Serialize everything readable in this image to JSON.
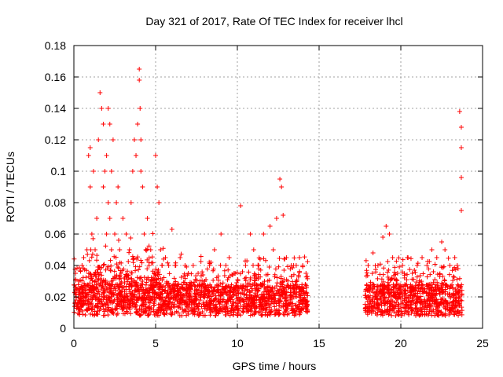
{
  "chart_data": {
    "type": "scatter",
    "title": "Day 321 of 2017, Rate Of TEC Index for receiver lhcl",
    "xlabel": "GPS time / hours",
    "ylabel": "ROTI / TECUs",
    "xlim": [
      0,
      25
    ],
    "ylim": [
      0,
      0.18
    ],
    "xticks": [
      0,
      5,
      10,
      15,
      20,
      25
    ],
    "yticks": [
      0,
      0.02,
      0.04,
      0.06,
      0.08,
      0.1,
      0.12,
      0.14,
      0.16,
      0.18
    ],
    "xtick_labels": [
      "0",
      "5",
      "10",
      "15",
      "20",
      "25"
    ],
    "ytick_labels": [
      "0",
      "0.02",
      "0.04",
      "0.06",
      "0.08",
      "0.1",
      "0.12",
      "0.14",
      "0.16",
      "0.18"
    ],
    "grid": true,
    "marker": "+",
    "color": "#ff0000",
    "data_gap_hours": [
      14.3,
      17.8
    ],
    "series": [
      {
        "name": "ROTI",
        "x": [
          0.1,
          0.3,
          0.5,
          0.6,
          0.8,
          0.9,
          1.0,
          1.0,
          1.1,
          1.2,
          1.3,
          1.4,
          1.5,
          1.6,
          1.7,
          1.8,
          1.8,
          1.9,
          2.0,
          2.0,
          2.1,
          2.1,
          2.2,
          2.2,
          2.3,
          2.3,
          2.4,
          2.5,
          2.6,
          2.7,
          2.8,
          3.0,
          3.2,
          3.4,
          3.5,
          3.6,
          3.7,
          3.8,
          3.9,
          4.0,
          4.0,
          4.05,
          4.1,
          4.1,
          4.2,
          4.3,
          4.4,
          4.5,
          4.6,
          4.7,
          4.8,
          5.0,
          5.1,
          5.2,
          5.3,
          5.4,
          5.6,
          5.8,
          6.0,
          6.2,
          6.5,
          6.8,
          7.0,
          7.3,
          7.6,
          8.0,
          8.3,
          8.6,
          9.0,
          9.3,
          9.5,
          9.8,
          10.2,
          10.5,
          10.8,
          11.0,
          11.3,
          11.6,
          12.0,
          12.2,
          12.4,
          12.6,
          12.7,
          12.8,
          13.0,
          13.3,
          13.6,
          13.8,
          14.0,
          14.2,
          18.0,
          18.3,
          18.6,
          18.9,
          19.1,
          19.3,
          19.5,
          19.8,
          20.1,
          20.4,
          20.7,
          21.0,
          21.3,
          21.6,
          21.9,
          22.2,
          22.5,
          22.7,
          23.0,
          23.3,
          23.5,
          23.6,
          23.7,
          23.7,
          23.7,
          23.7,
          0.2,
          0.7,
          1.1,
          1.6,
          2.4,
          2.9,
          3.3,
          3.8,
          4.4,
          4.9,
          5.5,
          6.1,
          6.7,
          7.4,
          8.1,
          8.8,
          9.4,
          10.0,
          10.7,
          11.5,
          12.3,
          13.1,
          13.9,
          18.2,
          18.8,
          19.4,
          20.0,
          20.6,
          21.2,
          21.8,
          22.4,
          23.0,
          23.6,
          1.3,
          2.2,
          3.1,
          4.2,
          5.0,
          9.2,
          12.5,
          19.2,
          22.6
        ],
        "y": [
          0.035,
          0.03,
          0.04,
          0.045,
          0.05,
          0.11,
          0.115,
          0.09,
          0.06,
          0.1,
          0.05,
          0.07,
          0.12,
          0.15,
          0.14,
          0.13,
          0.09,
          0.1,
          0.11,
          0.06,
          0.14,
          0.08,
          0.13,
          0.07,
          0.1,
          0.05,
          0.12,
          0.06,
          0.08,
          0.09,
          0.05,
          0.07,
          0.06,
          0.05,
          0.08,
          0.1,
          0.12,
          0.11,
          0.13,
          0.165,
          0.158,
          0.14,
          0.12,
          0.1,
          0.09,
          0.06,
          0.05,
          0.07,
          0.04,
          0.05,
          0.03,
          0.11,
          0.09,
          0.08,
          0.05,
          0.04,
          0.045,
          0.04,
          0.063,
          0.04,
          0.045,
          0.04,
          0.035,
          0.04,
          0.035,
          0.03,
          0.04,
          0.05,
          0.06,
          0.04,
          0.045,
          0.035,
          0.078,
          0.04,
          0.06,
          0.05,
          0.04,
          0.06,
          0.065,
          0.05,
          0.07,
          0.095,
          0.09,
          0.072,
          0.045,
          0.04,
          0.04,
          0.045,
          0.04,
          0.035,
          0.04,
          0.048,
          0.04,
          0.058,
          0.065,
          0.06,
          0.045,
          0.035,
          0.04,
          0.045,
          0.035,
          0.04,
          0.045,
          0.04,
          0.05,
          0.045,
          0.055,
          0.05,
          0.04,
          0.045,
          0.038,
          0.138,
          0.128,
          0.115,
          0.096,
          0.075,
          0.015,
          0.02,
          0.025,
          0.018,
          0.022,
          0.016,
          0.02,
          0.024,
          0.018,
          0.022,
          0.015,
          0.019,
          0.021,
          0.017,
          0.015,
          0.012,
          0.018,
          0.014,
          0.016,
          0.013,
          0.017,
          0.015,
          0.012,
          0.014,
          0.016,
          0.018,
          0.013,
          0.015,
          0.017,
          0.014,
          0.016,
          0.012,
          0.015,
          0.03,
          0.028,
          0.032,
          0.03,
          0.027,
          0.025,
          0.022,
          0.026,
          0.028
        ]
      }
    ]
  }
}
